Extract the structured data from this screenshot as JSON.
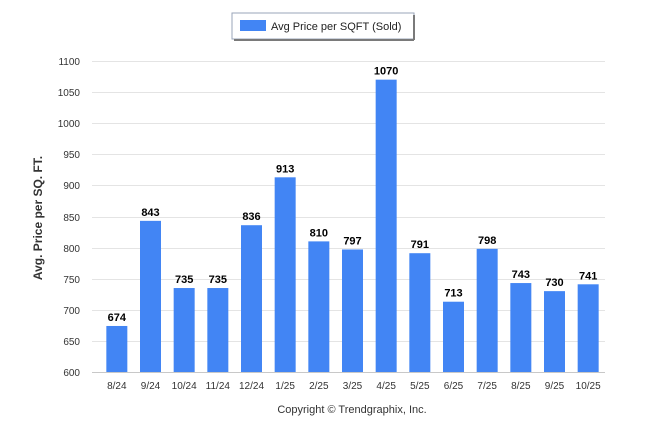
{
  "chart_data": {
    "type": "bar",
    "categories": [
      "8/24",
      "9/24",
      "10/24",
      "11/24",
      "12/24",
      "1/25",
      "2/25",
      "3/25",
      "4/25",
      "5/25",
      "6/25",
      "7/25",
      "8/25",
      "9/25",
      "10/25"
    ],
    "series": [
      {
        "name": "Avg Price per SQFT (Sold)",
        "values": [
          674,
          843,
          735,
          735,
          836,
          913,
          810,
          797,
          1070,
          791,
          713,
          798,
          743,
          730,
          741
        ],
        "color": "#4285f4"
      }
    ],
    "title": "",
    "xlabel": "",
    "ylabel": "Avg. Price per SQ. FT.",
    "ylim": [
      600,
      1100
    ],
    "yticks": [
      600,
      650,
      700,
      750,
      800,
      850,
      900,
      950,
      1000,
      1050,
      1100
    ],
    "grid": true,
    "legend_position": "top-center"
  },
  "footer": {
    "copyright": "Copyright © Trendgraphix, Inc."
  }
}
